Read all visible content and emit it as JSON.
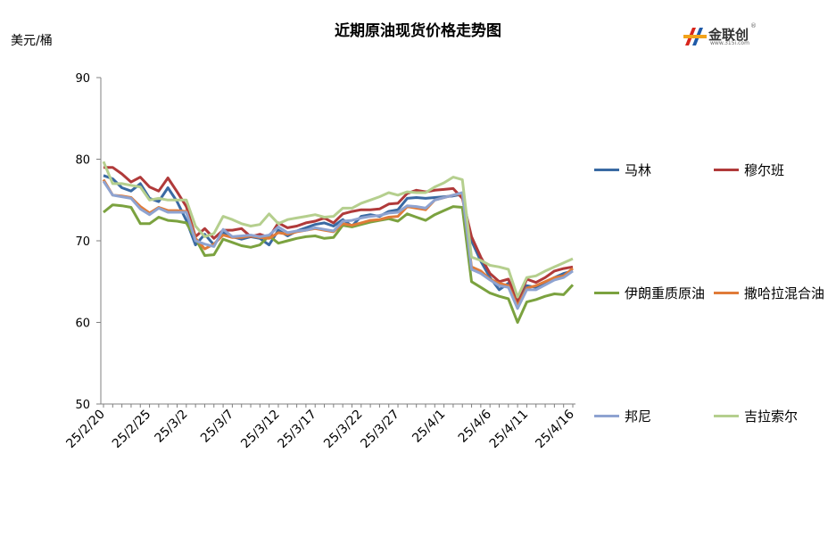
{
  "title": "近期原油现货价格走势图",
  "unit_label": "美元/桶",
  "logo": {
    "name": "金联创",
    "sub": "www.315i.com",
    "reg": "®"
  },
  "chart_data": {
    "type": "line",
    "title": "近期原油现货价格走势图",
    "xlabel": "",
    "ylabel": "美元/桶",
    "ylim": [
      50,
      90
    ],
    "yticks": [
      50,
      60,
      70,
      80,
      90
    ],
    "xtick_labels": [
      "25/2/20",
      "25/2/25",
      "25/3/2",
      "25/3/7",
      "25/3/12",
      "25/3/17",
      "25/3/22",
      "25/3/27",
      "25/4/1",
      "25/4/6",
      "25/4/11",
      "25/4/16"
    ],
    "grid": false,
    "legend_placement": "right",
    "series": [
      {
        "name": "马林",
        "color": "#3a6aa3",
        "values": [
          78,
          77.6,
          76.5,
          76.1,
          77,
          75.2,
          74.8,
          76.5,
          74.8,
          72.5,
          69.5,
          70.8,
          69.5,
          71,
          70.5,
          70.2,
          70.5,
          70.3,
          69.5,
          71.3,
          70.6,
          71.2,
          71.6,
          72,
          72.2,
          71.8,
          72.6,
          71.8,
          73,
          73.2,
          73,
          73.6,
          73.8,
          75.2,
          75.3,
          75.2,
          75.3,
          75.4,
          75.5,
          75.7,
          70,
          67.5,
          65.5,
          64,
          64.8,
          62.3,
          64.5,
          64.3,
          64.8,
          65.5,
          66,
          66.3
        ]
      },
      {
        "name": "穆尔班",
        "color": "#b03a3a",
        "values": [
          79,
          79,
          78.2,
          77.2,
          77.8,
          76.6,
          76.1,
          77.7,
          76,
          74.2,
          70.5,
          71.5,
          70.3,
          71.3,
          71.3,
          71.5,
          70.5,
          70.8,
          70.4,
          72.2,
          71.6,
          71.8,
          72.2,
          72.4,
          72.8,
          72.2,
          73.3,
          73.6,
          73.8,
          73.8,
          73.9,
          74.5,
          74.6,
          75.8,
          76.2,
          76,
          76.2,
          76.3,
          76.4,
          75.2,
          70.5,
          68,
          66,
          65,
          65.3,
          62.6,
          65.3,
          64.9,
          65.5,
          66.3,
          66.6,
          66.8
        ]
      },
      {
        "name": "伊朗重质原油",
        "color": "#7ba23f",
        "values": [
          73.5,
          74.4,
          74.3,
          74.1,
          72.1,
          72.1,
          72.9,
          72.5,
          72.4,
          72.2,
          70.3,
          68.2,
          68.3,
          70.2,
          69.8,
          69.4,
          69.2,
          69.5,
          70.6,
          69.7,
          70,
          70.3,
          70.5,
          70.6,
          70.3,
          70.4,
          71.9,
          71.7,
          72,
          72.3,
          72.5,
          72.7,
          72.4,
          73.3,
          72.9,
          72.5,
          73.2,
          73.7,
          74.2,
          74.1,
          65,
          64.3,
          63.6,
          63.2,
          62.9,
          60,
          62.5,
          62.8,
          63.2,
          63.5,
          63.4,
          64.6
        ]
      },
      {
        "name": "撒哈拉混合油",
        "color": "#e07b39",
        "values": [
          77.5,
          75.6,
          75.5,
          75.3,
          74.2,
          73.4,
          74.1,
          73.7,
          73.7,
          73.6,
          70.3,
          69,
          69.6,
          70.7,
          70.4,
          70.4,
          70.6,
          70.4,
          70.3,
          71,
          70.8,
          71.1,
          71.3,
          71.5,
          71.3,
          71.1,
          72.1,
          71.9,
          72.2,
          72.5,
          72.6,
          72.9,
          73,
          74.2,
          74,
          73.8,
          75,
          75.3,
          75.6,
          75.8,
          66.8,
          66.3,
          65.3,
          64.8,
          64.5,
          62,
          64.2,
          64.5,
          65,
          65.5,
          65.7,
          66.6
        ]
      },
      {
        "name": "邦尼",
        "color": "#8ea3d1",
        "values": [
          77.3,
          75.6,
          75.4,
          75.2,
          73.9,
          73.2,
          74,
          73.5,
          73.5,
          73.5,
          70,
          69.6,
          69.3,
          71.4,
          70.5,
          70.6,
          70.7,
          70.5,
          70.7,
          71.7,
          71,
          71.2,
          71.3,
          71.6,
          71.4,
          71.2,
          72.4,
          72.5,
          72.8,
          73,
          73.1,
          73.4,
          73.5,
          74.3,
          74.2,
          74,
          75,
          75.3,
          75.6,
          75.9,
          66.5,
          66,
          65.2,
          64.5,
          64.3,
          61.7,
          64,
          64,
          64.6,
          65.2,
          65.5,
          66.3
        ]
      },
      {
        "name": "吉拉索尔",
        "color": "#b5cf8e",
        "values": [
          79.7,
          77,
          77,
          76.8,
          76.6,
          75,
          75.2,
          75,
          75,
          75,
          71.8,
          70.5,
          70.9,
          73,
          72.6,
          72.1,
          71.8,
          72,
          73.3,
          72.1,
          72.6,
          72.8,
          73,
          73.2,
          72.9,
          73,
          74,
          74,
          74.6,
          75,
          75.4,
          75.9,
          75.6,
          76,
          75.9,
          75.9,
          76.6,
          77.1,
          77.8,
          77.5,
          68,
          67.6,
          67,
          66.8,
          66.5,
          63.1,
          65.5,
          65.7,
          66.3,
          66.8,
          67.3,
          67.8
        ]
      }
    ]
  }
}
